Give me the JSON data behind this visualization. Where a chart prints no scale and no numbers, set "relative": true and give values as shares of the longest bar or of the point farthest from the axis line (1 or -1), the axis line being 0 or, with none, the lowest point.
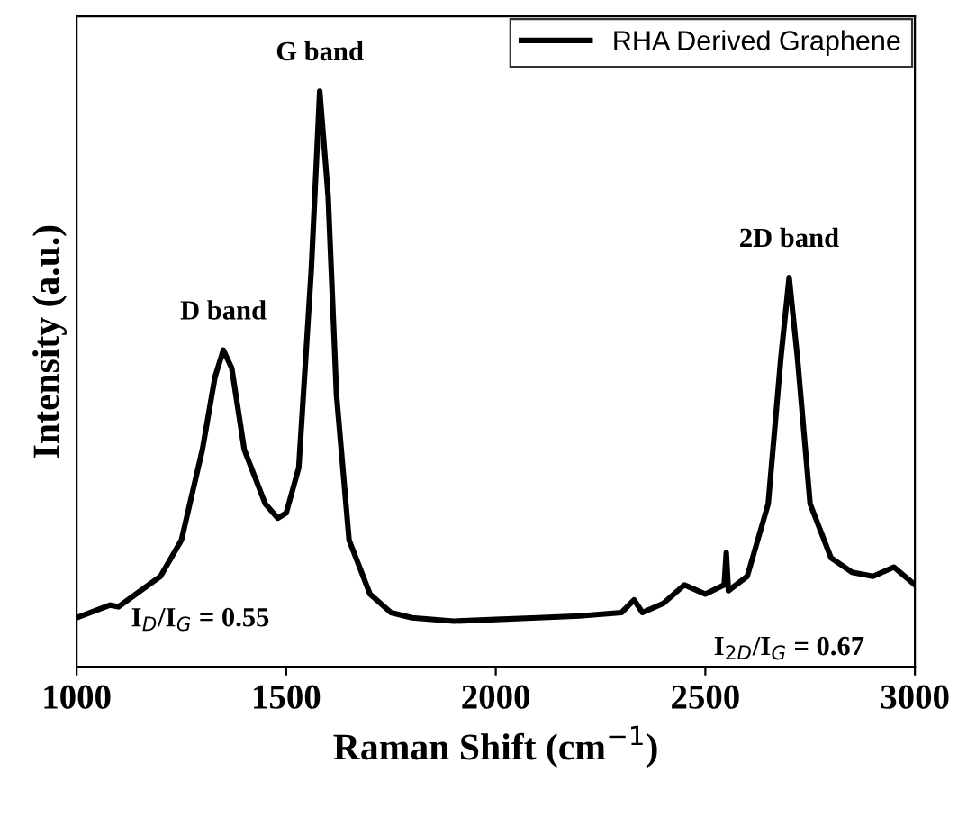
{
  "chart_data": {
    "type": "line",
    "relative": true,
    "xlabel": "Raman Shift (cm$^{−1}$)",
    "ylabel": "Intensity (a.u.)",
    "xlim": [
      1000,
      3000
    ],
    "xticks": [
      1000,
      1500,
      2000,
      2500,
      3000
    ],
    "tick_labels": "x",
    "grid": false,
    "legend": "top right",
    "marker": "none",
    "line_style": "solid",
    "series": [
      {
        "name": "RHA Derived Graphene",
        "color": "#000000",
        "x": [
          1000,
          1080,
          1100,
          1200,
          1250,
          1300,
          1330,
          1350,
          1370,
          1400,
          1450,
          1480,
          1500,
          1530,
          1560,
          1580,
          1600,
          1620,
          1650,
          1700,
          1750,
          1800,
          1900,
          2000,
          2100,
          2200,
          2300,
          2330,
          2350,
          2400,
          2450,
          2500,
          2545,
          2550,
          2555,
          2600,
          2650,
          2680,
          2700,
          2720,
          2750,
          2800,
          2850,
          2900,
          2950,
          3000
        ],
        "values": [
          0.085,
          0.107,
          0.104,
          0.157,
          0.22,
          0.377,
          0.503,
          0.55,
          0.519,
          0.377,
          0.283,
          0.258,
          0.267,
          0.346,
          0.692,
          1,
          0.818,
          0.472,
          0.22,
          0.126,
          0.094,
          0.085,
          0.079,
          0.082,
          0.085,
          0.088,
          0.094,
          0.116,
          0.094,
          0.11,
          0.142,
          0.126,
          0.142,
          0.198,
          0.132,
          0.157,
          0.283,
          0.535,
          0.676,
          0.535,
          0.283,
          0.189,
          0.164,
          0.157,
          0.173,
          0.142
        ]
      }
    ],
    "annotations": [
      {
        "text": "D band",
        "x": 1350,
        "y": 0.55
      },
      {
        "text": "G band",
        "x": 1580,
        "y": 1
      },
      {
        "text": "2D band",
        "x": 2700,
        "y": 0.676
      },
      "I$_{D}$/I$_{G}$ = 0.55",
      "I$_{2D}$/I$_{G}$ = 0.67"
    ]
  }
}
